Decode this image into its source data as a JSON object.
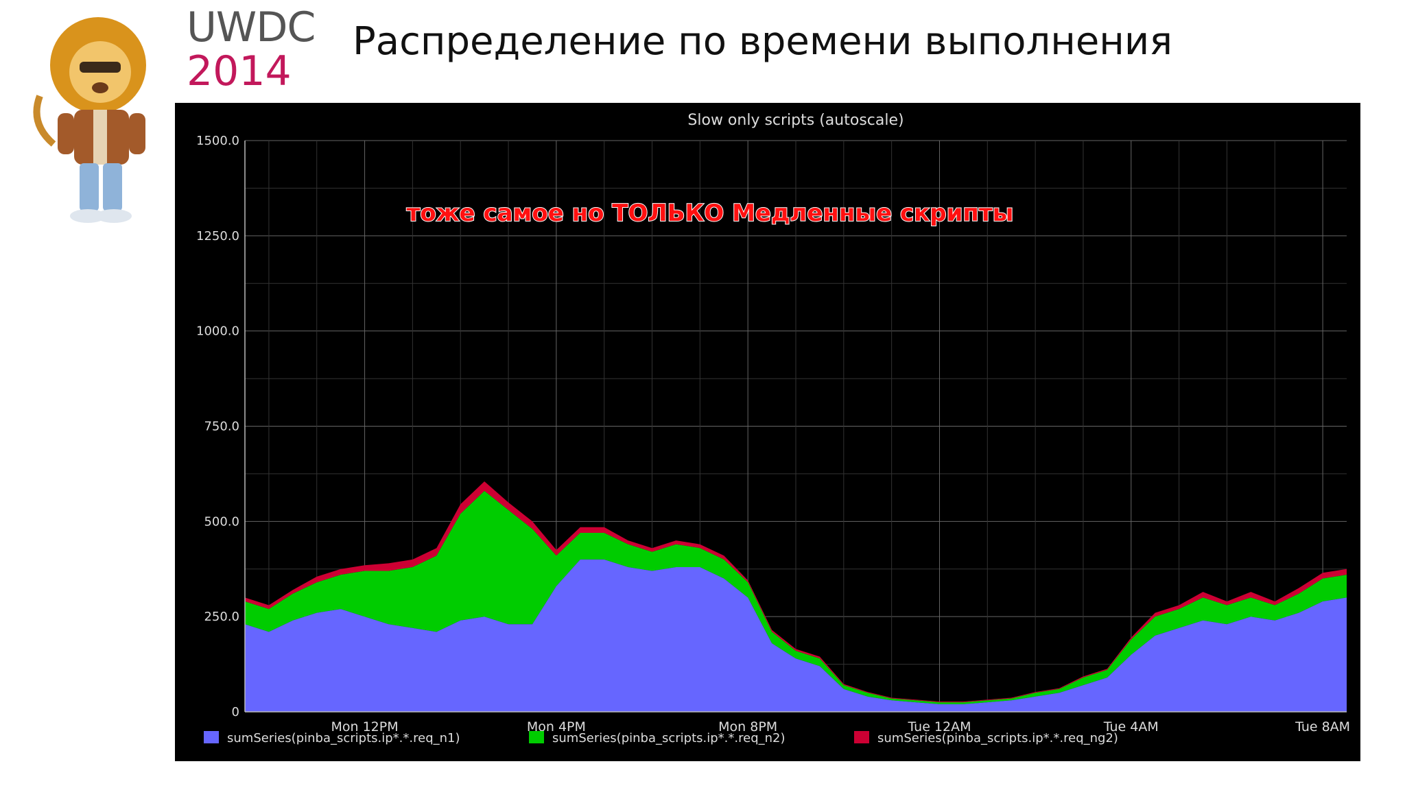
{
  "brand": {
    "line1": "UWDC",
    "line2": "2014"
  },
  "slide_title": "Распределение по времени выполнения",
  "chart_data": {
    "type": "area",
    "title": "Slow only scripts (autoscale)",
    "annotation": "тоже самое но ТОЛЬКО Медленные скрипты",
    "stacked": true,
    "x_tick_labels": [
      "Mon 12PM",
      "Mon  4PM",
      "Mon  8PM",
      "Tue 12AM",
      "Tue  4AM",
      "Tue  8AM"
    ],
    "x_tick_hours": [
      4,
      8,
      12,
      16,
      20,
      24
    ],
    "x_range_hours": [
      1.5,
      24.5
    ],
    "ylim": [
      0,
      1500
    ],
    "y_tick_labels": [
      "0",
      "250.0",
      "500.0",
      "750.0",
      "1000.0",
      "1250.0",
      "1500.0"
    ],
    "y_tick_values": [
      0,
      250,
      500,
      750,
      1000,
      1250,
      1500
    ],
    "grid": true,
    "legend_position": "bottom",
    "x_hours": [
      1.5,
      2.0,
      2.5,
      3.0,
      3.5,
      4.0,
      4.5,
      5.0,
      5.5,
      6.0,
      6.5,
      7.0,
      7.5,
      8.0,
      8.5,
      9.0,
      9.5,
      10.0,
      10.5,
      11.0,
      11.5,
      12.0,
      12.5,
      13.0,
      13.5,
      14.0,
      14.5,
      15.0,
      15.5,
      16.0,
      16.5,
      17.0,
      17.5,
      18.0,
      18.5,
      19.0,
      19.5,
      20.0,
      20.5,
      21.0,
      21.5,
      22.0,
      22.5,
      23.0,
      23.5,
      24.0,
      24.5
    ],
    "series": [
      {
        "name": "sumSeries(pinba_scripts.ip*.*.req_n1)",
        "color": "#6666ff",
        "values": [
          230,
          210,
          240,
          260,
          270,
          250,
          230,
          220,
          210,
          240,
          250,
          230,
          230,
          330,
          400,
          400,
          380,
          370,
          380,
          380,
          350,
          300,
          180,
          140,
          120,
          60,
          40,
          30,
          25,
          20,
          20,
          25,
          30,
          40,
          50,
          70,
          90,
          150,
          200,
          220,
          240,
          230,
          250,
          240,
          260,
          290,
          300
        ]
      },
      {
        "name": "sumSeries(pinba_scripts.ip*.*.req_n2)",
        "color": "#00cc00",
        "values": [
          60,
          60,
          70,
          80,
          90,
          120,
          140,
          160,
          200,
          280,
          330,
          300,
          250,
          80,
          70,
          70,
          60,
          50,
          60,
          50,
          50,
          40,
          30,
          20,
          20,
          10,
          10,
          5,
          5,
          5,
          5,
          5,
          5,
          10,
          10,
          20,
          20,
          40,
          50,
          50,
          60,
          50,
          50,
          40,
          50,
          60,
          60
        ]
      },
      {
        "name": "sumSeries(pinba_scripts.ip*.*.req_ng2)",
        "color": "#cc0033",
        "values": [
          10,
          10,
          10,
          15,
          15,
          15,
          20,
          20,
          20,
          25,
          25,
          20,
          20,
          15,
          15,
          15,
          10,
          10,
          10,
          10,
          10,
          5,
          5,
          5,
          5,
          3,
          2,
          2,
          2,
          2,
          2,
          2,
          2,
          2,
          2,
          3,
          3,
          5,
          10,
          10,
          15,
          10,
          15,
          10,
          15,
          15,
          15
        ]
      }
    ]
  }
}
